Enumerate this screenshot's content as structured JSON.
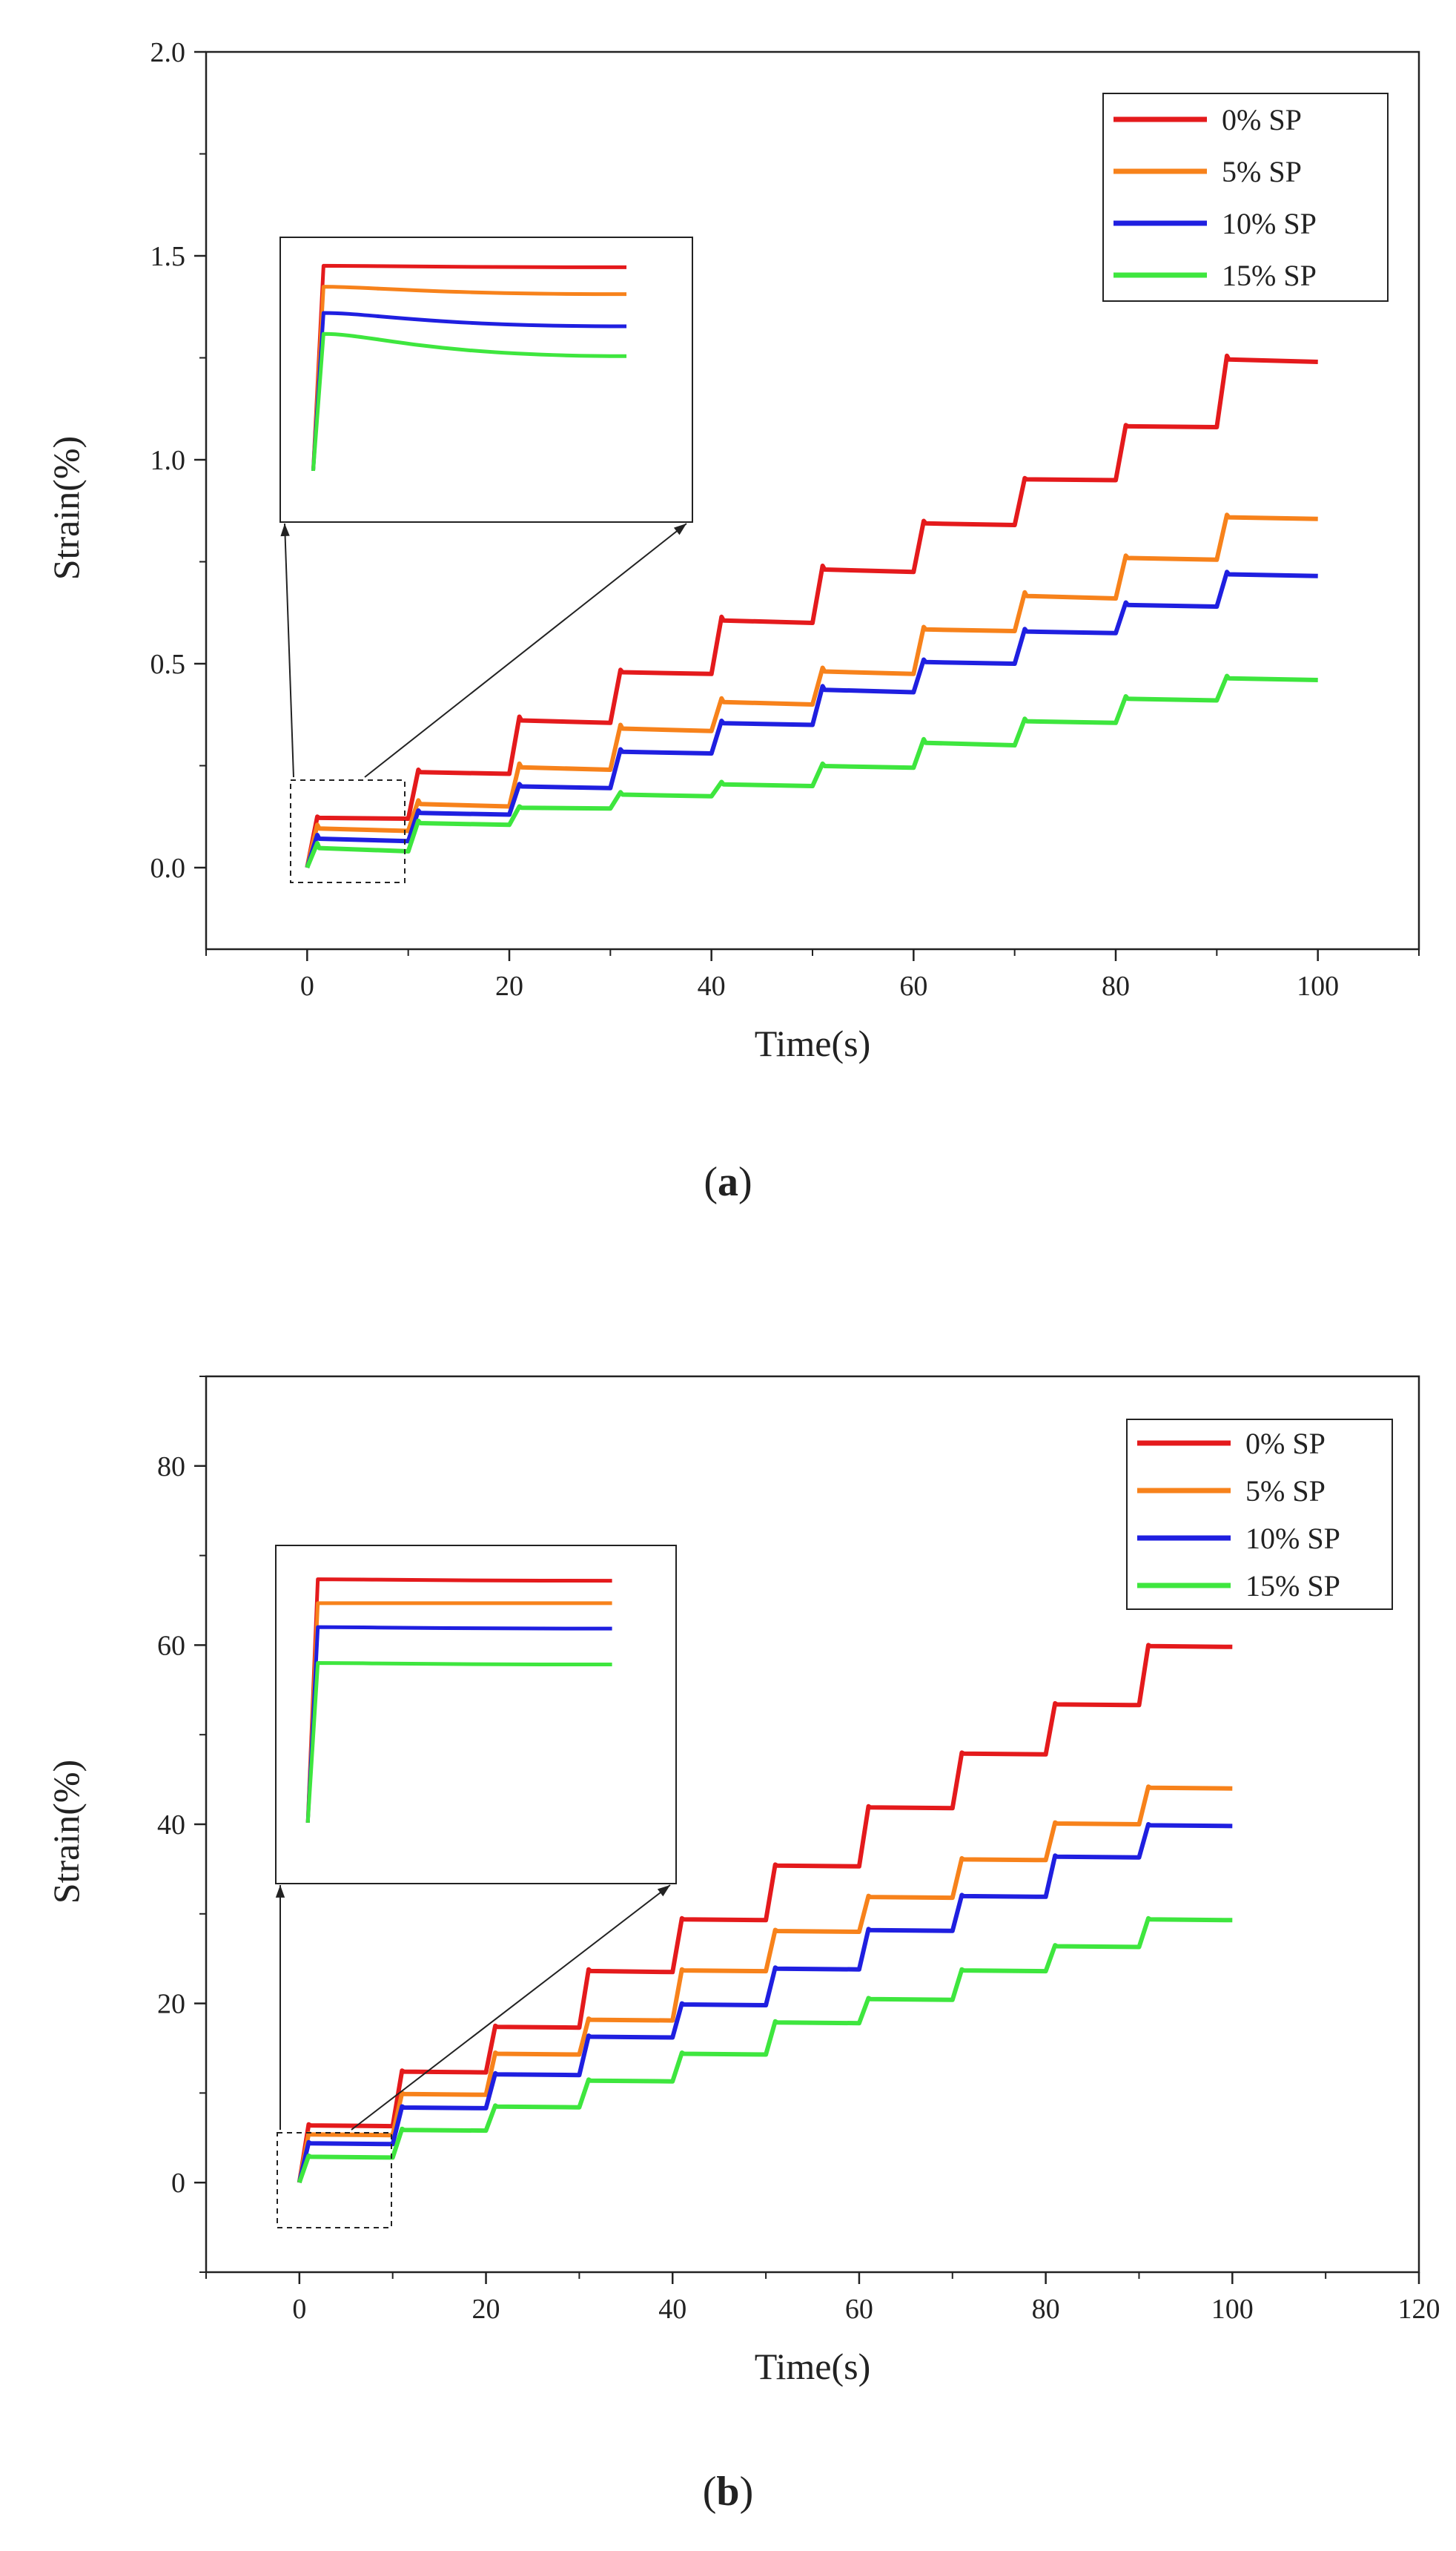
{
  "chart_data": [
    {
      "type": "line",
      "panel": "a",
      "caption_letter": "a",
      "xlabel": "Time(s)",
      "ylabel": "Strain(%)",
      "xlim": [
        -10,
        110
      ],
      "ylim": [
        -0.2,
        2.0
      ],
      "xticks": [
        0,
        20,
        40,
        60,
        80,
        100
      ],
      "yticks": [
        0.0,
        0.5,
        1.0,
        1.5,
        2.0
      ],
      "xtick_labels": [
        "0",
        "20",
        "40",
        "60",
        "80",
        "100"
      ],
      "ytick_labels": [
        "0.0",
        "0.5",
        "1.0",
        "1.5",
        "2.0"
      ],
      "legend": {
        "position": "top-right"
      },
      "step_times": [
        0,
        10,
        20,
        30,
        40,
        50,
        60,
        70,
        80,
        90
      ],
      "series": [
        {
          "name": "0% SP",
          "color": "#e41a1c",
          "peaks": [
            0.125,
            0.24,
            0.37,
            0.485,
            0.615,
            0.74,
            0.85,
            0.955,
            1.085,
            1.255
          ],
          "ends": [
            0.12,
            0.23,
            0.355,
            0.475,
            0.6,
            0.725,
            0.84,
            0.95,
            1.08,
            1.24
          ]
        },
        {
          "name": "5% SP",
          "color": "#f7821b",
          "peaks": [
            0.105,
            0.165,
            0.255,
            0.35,
            0.415,
            0.49,
            0.59,
            0.675,
            0.765,
            0.865
          ],
          "ends": [
            0.09,
            0.15,
            0.24,
            0.335,
            0.4,
            0.475,
            0.58,
            0.66,
            0.755,
            0.855
          ]
        },
        {
          "name": "10% SP",
          "color": "#1f1fe0",
          "peaks": [
            0.08,
            0.14,
            0.205,
            0.29,
            0.36,
            0.445,
            0.51,
            0.585,
            0.65,
            0.725
          ],
          "ends": [
            0.065,
            0.13,
            0.195,
            0.28,
            0.35,
            0.43,
            0.5,
            0.575,
            0.64,
            0.715
          ]
        },
        {
          "name": "15% SP",
          "color": "#3ee63e",
          "peaks": [
            0.06,
            0.115,
            0.15,
            0.185,
            0.21,
            0.255,
            0.315,
            0.365,
            0.42,
            0.47
          ],
          "ends": [
            0.04,
            0.105,
            0.145,
            0.175,
            0.2,
            0.245,
            0.3,
            0.355,
            0.41,
            0.46
          ]
        }
      ]
    },
    {
      "type": "line",
      "panel": "b",
      "caption_letter": "b",
      "xlabel": "Time(s)",
      "ylabel": "Strain(%)",
      "xlim": [
        -10,
        120
      ],
      "ylim": [
        -10,
        90
      ],
      "xticks": [
        0,
        20,
        40,
        60,
        80,
        100,
        120
      ],
      "yticks": [
        0,
        20,
        40,
        60,
        80
      ],
      "xtick_labels": [
        "0",
        "20",
        "40",
        "60",
        "80",
        "100",
        "120"
      ],
      "ytick_labels": [
        "0",
        "20",
        "40",
        "60",
        "80"
      ],
      "legend": {
        "position": "top-right"
      },
      "step_times": [
        0,
        10,
        20,
        30,
        40,
        50,
        60,
        70,
        80,
        90
      ],
      "series": [
        {
          "name": "0% SP",
          "color": "#e41a1c",
          "peaks": [
            6.5,
            12.5,
            17.5,
            23.8,
            29.5,
            35.5,
            42,
            48,
            53.5,
            60
          ],
          "ends": [
            6.3,
            12.3,
            17.3,
            23.5,
            29.3,
            35.3,
            41.8,
            47.8,
            53.3,
            59.8
          ]
        },
        {
          "name": "5% SP",
          "color": "#f7821b",
          "peaks": [
            5.5,
            10,
            14.5,
            18.3,
            23.8,
            28.2,
            32,
            36.2,
            40.2,
            44.2
          ],
          "ends": [
            5.3,
            9.8,
            14.3,
            18.1,
            23.6,
            28,
            31.8,
            36,
            40,
            44
          ]
        },
        {
          "name": "10% SP",
          "color": "#1f1fe0",
          "peaks": [
            4.5,
            8.5,
            12.2,
            16.4,
            20,
            24,
            28.3,
            32.1,
            36.5,
            40
          ],
          "ends": [
            4.3,
            8.3,
            12,
            16.2,
            19.8,
            23.8,
            28.1,
            31.9,
            36.3,
            39.8
          ]
        },
        {
          "name": "15% SP",
          "color": "#3ee63e",
          "peaks": [
            3,
            6,
            8.6,
            11.5,
            14.5,
            18,
            20.6,
            23.8,
            26.5,
            29.5
          ],
          "ends": [
            2.8,
            5.8,
            8.4,
            11.3,
            14.3,
            17.8,
            20.4,
            23.6,
            26.3,
            29.3
          ]
        }
      ]
    }
  ]
}
